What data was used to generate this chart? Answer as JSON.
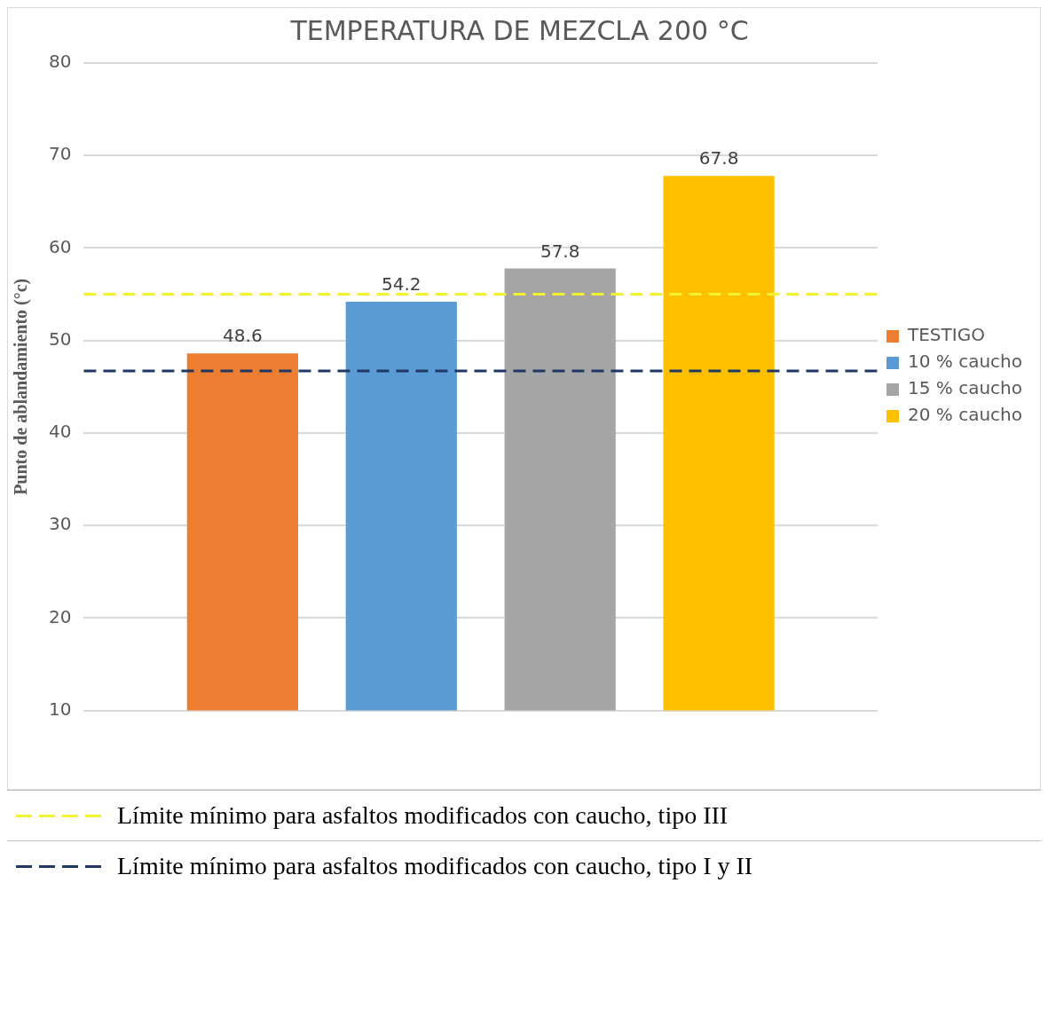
{
  "chart_data": {
    "type": "bar",
    "title": "TEMPERATURA DE MEZCLA 200 °C",
    "ylabel": "Punto de ablandamiento (°c)",
    "categories": [
      null
    ],
    "series": [
      {
        "name": "TESTIGO",
        "color": "#ed7d31",
        "values": [
          48.6
        ]
      },
      {
        "name": "10 % caucho",
        "color": "#5b9bd5",
        "values": [
          54.2
        ]
      },
      {
        "name": "15 % caucho",
        "color": "#a5a5a5",
        "values": [
          57.8
        ]
      },
      {
        "name": "20 % caucho",
        "color": "#ffc000",
        "values": [
          67.8
        ]
      }
    ],
    "ylim": [
      10,
      80
    ],
    "yticks": [
      10,
      20,
      30,
      40,
      50,
      60,
      70,
      80
    ],
    "grid": "y",
    "legend": "right",
    "data_labels": true,
    "ref_lines": [
      {
        "axis": "y",
        "value": 55,
        "label": "Límite mínimo para asfaltos modificados con caucho, tipo III",
        "color": "#f2f230",
        "line_style": "dashed"
      },
      {
        "axis": "y",
        "value": 46.7,
        "label": "Límite mínimo para asfaltos modificados con caucho, tipo I y II",
        "color": "#1f3864",
        "line_style": "dashed"
      }
    ]
  }
}
